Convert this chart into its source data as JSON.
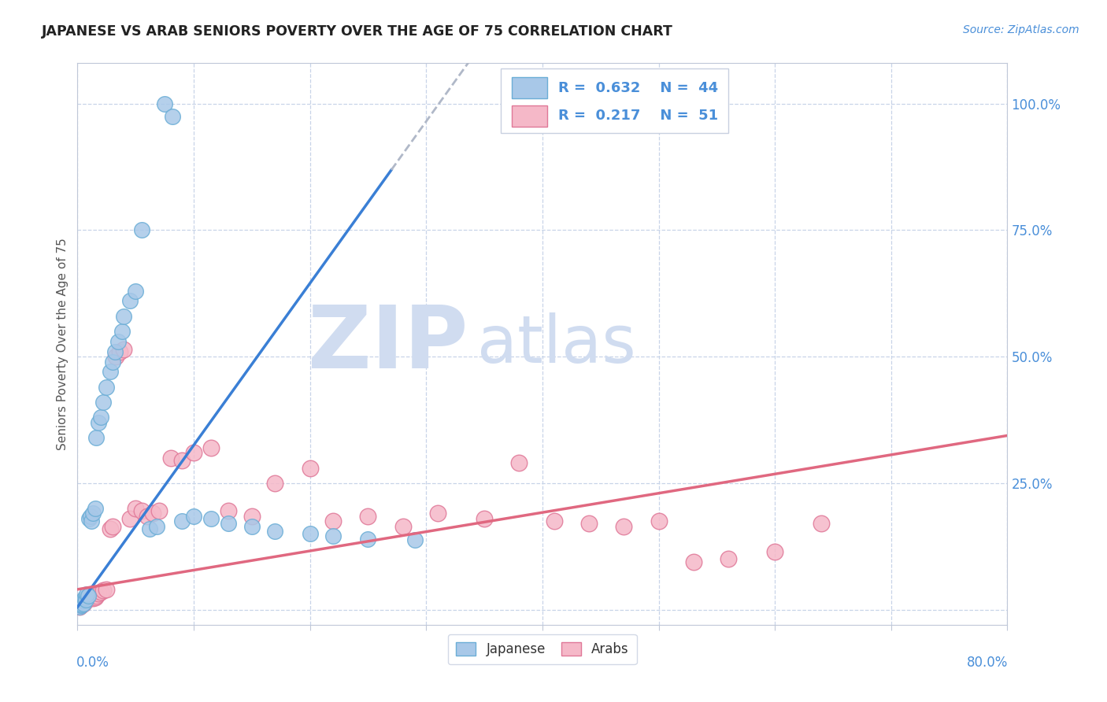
{
  "title": "JAPANESE VS ARAB SENIORS POVERTY OVER THE AGE OF 75 CORRELATION CHART",
  "source": "Source: ZipAtlas.com",
  "ylabel": "Seniors Poverty Over the Age of 75",
  "xlim": [
    0.0,
    0.8
  ],
  "ylim": [
    -0.03,
    1.08
  ],
  "japanese_color": "#a8c8e8",
  "arab_color": "#f5b8c8",
  "japanese_edge": "#6baed6",
  "arab_edge": "#e07898",
  "line_japanese_color": "#3a7fd5",
  "line_arab_color": "#e06880",
  "legend_text_color": "#4a8fd9",
  "background_color": "#ffffff",
  "grid_color": "#c8d4e8",
  "watermark_zip": "ZIP",
  "watermark_atlas": "atlas",
  "watermark_color": "#d0dcf0",
  "R_japanese": 0.632,
  "N_japanese": 44,
  "R_arab": 0.217,
  "N_arab": 51,
  "jap_slope": 3.2,
  "jap_intercept": 0.005,
  "arab_slope": 0.38,
  "arab_intercept": 0.04
}
